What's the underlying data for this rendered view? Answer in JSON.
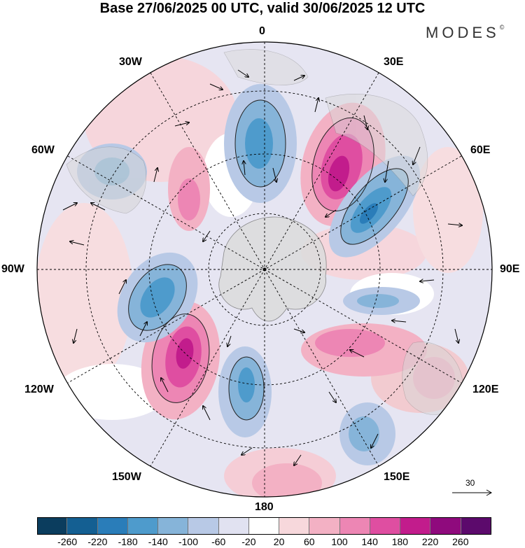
{
  "title": "Base 27/06/2025 00 UTC, valid 30/06/2025 12 UTC",
  "brand": "MODES",
  "brand_mark": "©",
  "longitude_labels": {
    "top": "0",
    "bottom": "180",
    "left": "90W",
    "right": "90E",
    "l30": "30W",
    "l60": "60W",
    "l120": "120W",
    "l150": "150W",
    "r30": "30E",
    "r60": "60E",
    "r120": "120E",
    "r150": "150E"
  },
  "reference_vector": "30",
  "colorbar": {
    "ticks": [
      "-260",
      "-220",
      "-180",
      "-140",
      "-100",
      "-60",
      "-20",
      "20",
      "60",
      "100",
      "140",
      "180",
      "220",
      "260"
    ],
    "colors": [
      "#0b3d5e",
      "#145f92",
      "#2a7db9",
      "#4e9bcc",
      "#86b4d9",
      "#b8c9e6",
      "#e1e2f1",
      "#ffffff",
      "#f7d8dc",
      "#f3b1c4",
      "#ed86b4",
      "#df4ea1",
      "#c21c8c",
      "#8f0a7d",
      "#5c0a6c"
    ]
  },
  "icons": [
    "north-arrow-vector",
    "antarctica-landmass"
  ]
}
